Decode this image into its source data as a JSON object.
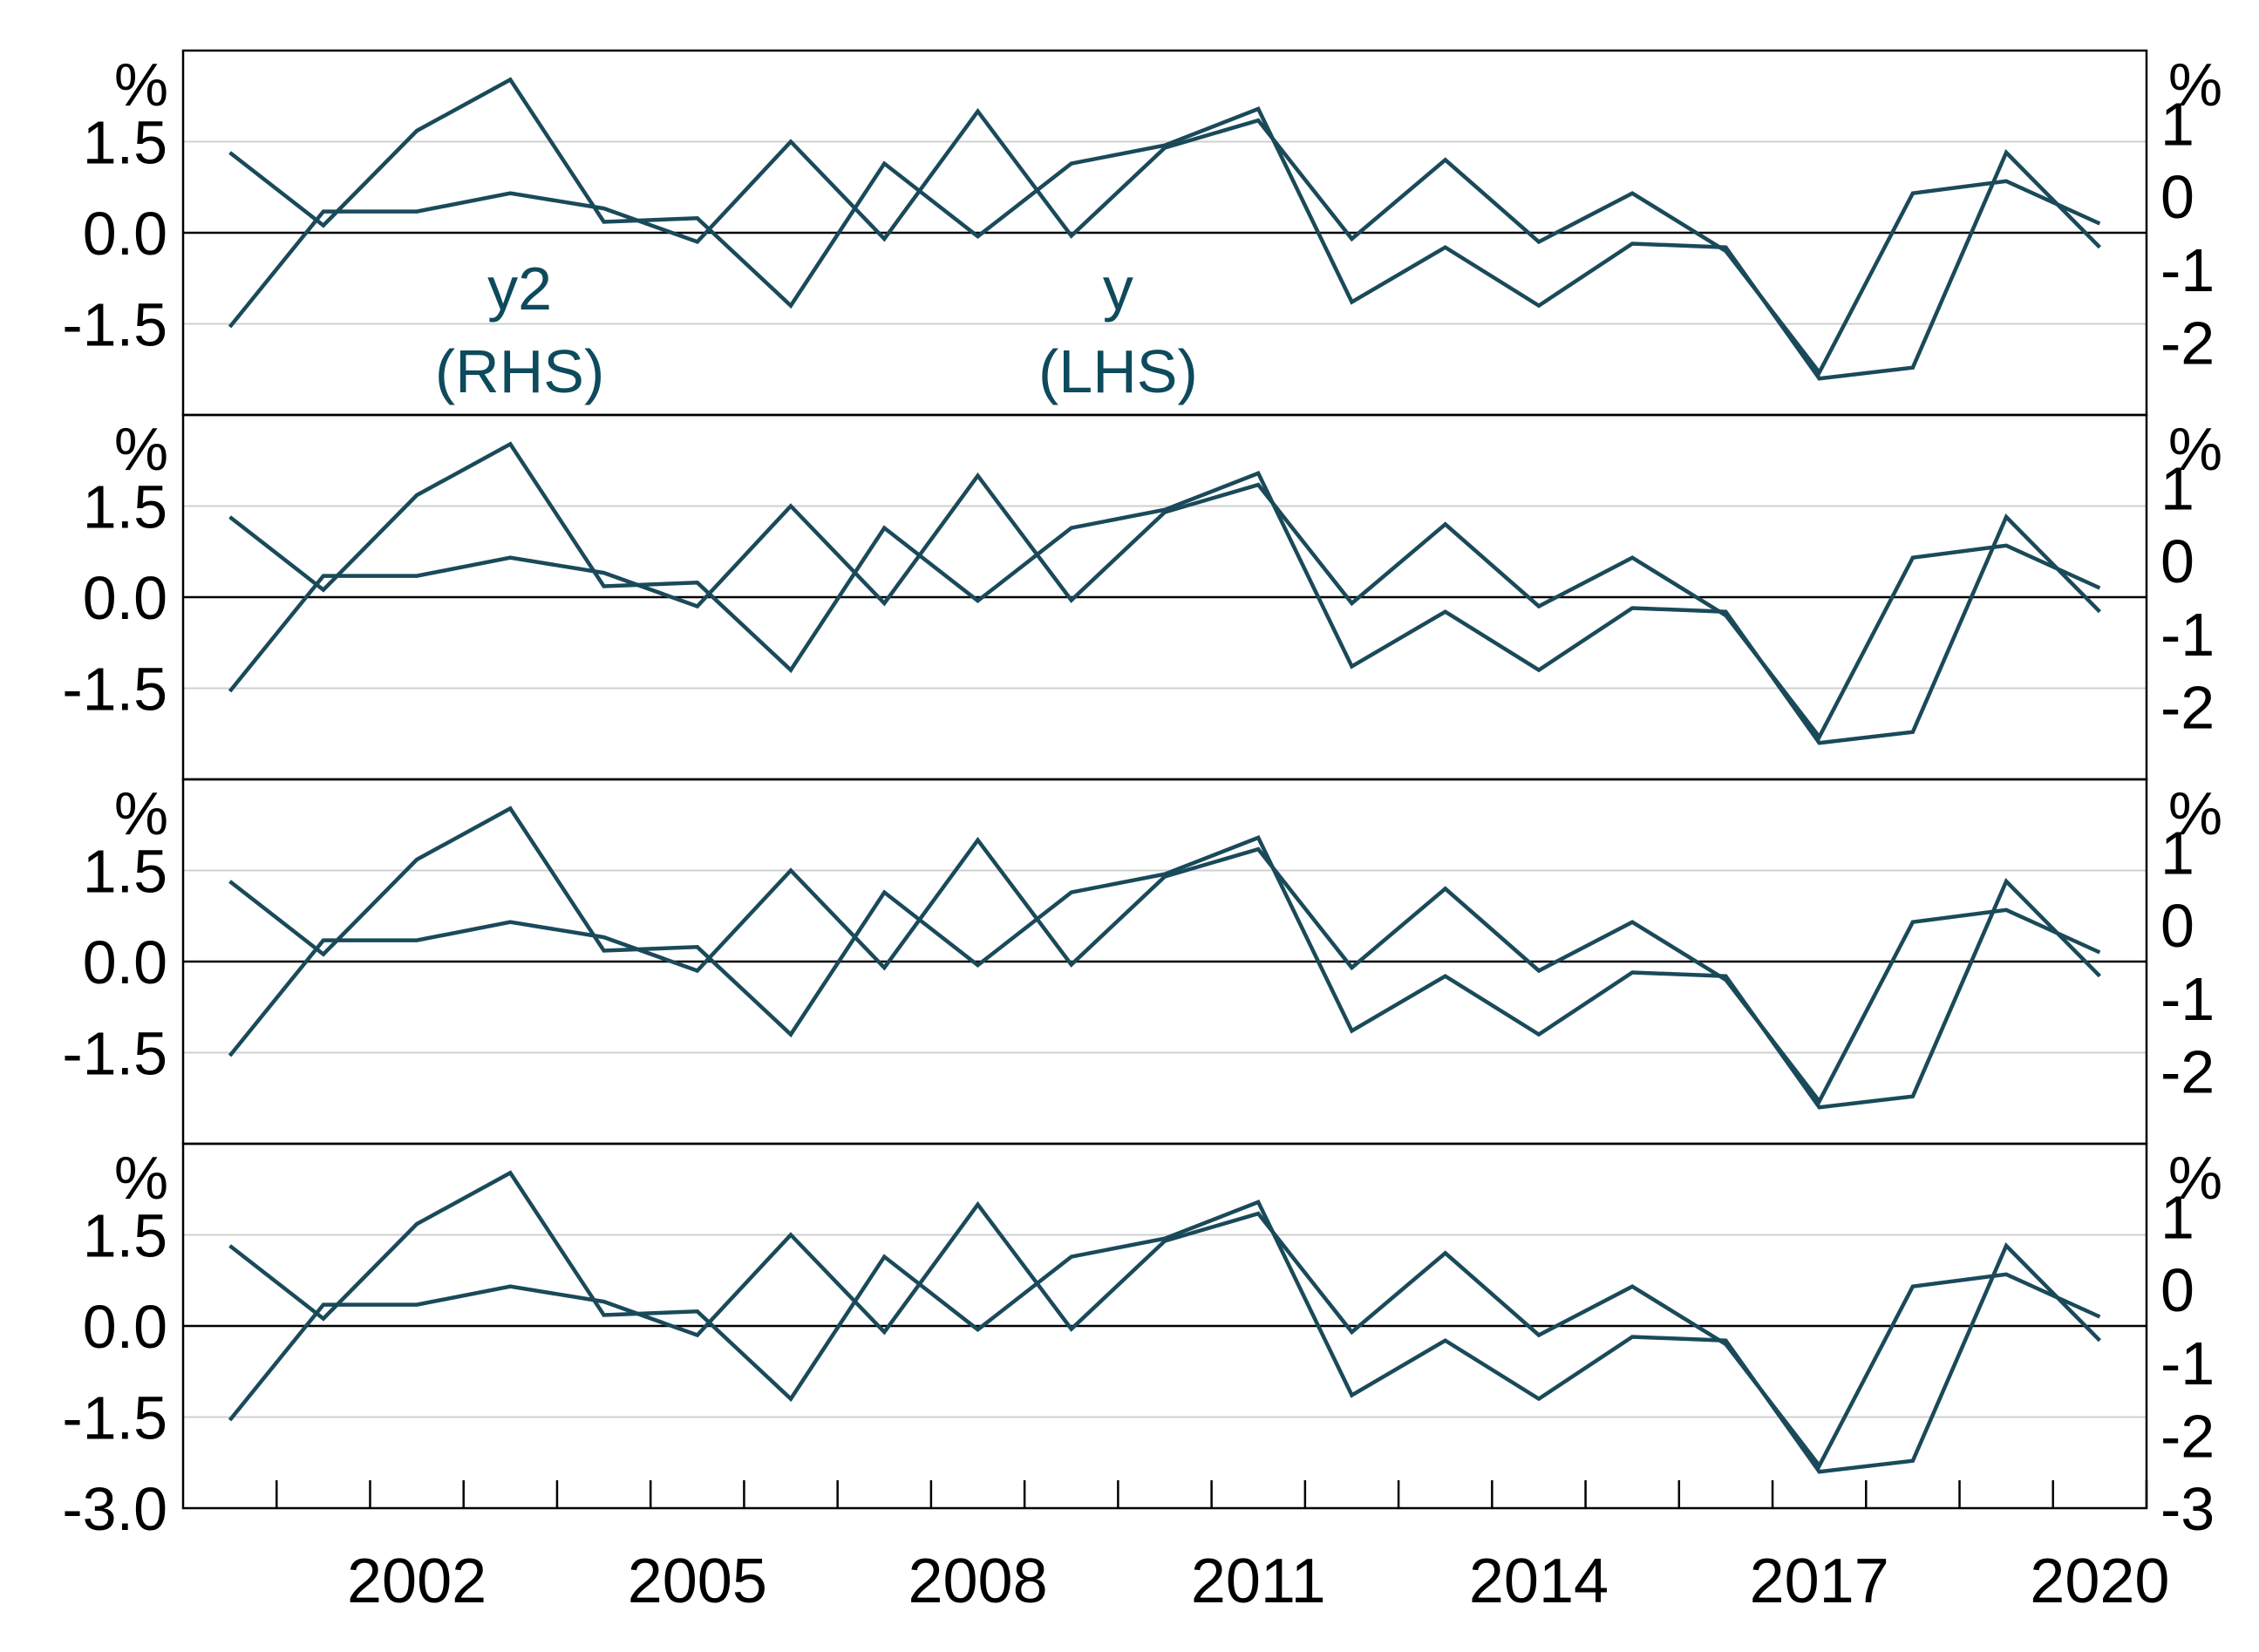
{
  "colors": {
    "series_line": "#1a4a5a",
    "zero_line": "#000000",
    "grid": "#d0d0d0",
    "frame": "#000000",
    "annotation": "#0d4a5c"
  },
  "chart_data": {
    "type": "line",
    "panel_count": 4,
    "x": [
      2000,
      2001,
      2002,
      2003,
      2004,
      2005,
      2006,
      2007,
      2008,
      2009,
      2010,
      2011,
      2012,
      2013,
      2014,
      2015,
      2016,
      2017,
      2018,
      2019,
      2020
    ],
    "xlim": [
      1999.5,
      2020.5
    ],
    "x_ticks": [
      2002,
      2005,
      2008,
      2011,
      2014,
      2017,
      2020
    ],
    "x_tick_labels": [
      "2002",
      "2005",
      "2008",
      "2011",
      "2014",
      "2017",
      "2020"
    ],
    "left_axis": {
      "unit": "%",
      "ylim": [
        -3.0,
        3.0
      ],
      "ticks": [
        1.5,
        0.0,
        -1.5
      ],
      "tick_labels": [
        "1.5",
        "0.0",
        "-1.5"
      ],
      "bottom_panel_ticks": [
        1.5,
        0.0,
        -1.5,
        -3.0
      ],
      "bottom_panel_tick_labels": [
        "1.5",
        "0.0",
        "-1.5",
        "-3.0"
      ]
    },
    "right_axis": {
      "unit": "%",
      "ylim": [
        -3.0,
        2.0
      ],
      "ticks": [
        1,
        0,
        -1,
        -2
      ],
      "tick_labels": [
        "1",
        "0",
        "-1",
        "-2"
      ],
      "bottom_panel_ticks": [
        1,
        0,
        -1,
        -2,
        -3
      ],
      "bottom_panel_tick_labels": [
        "1",
        "0",
        "-1",
        "-2",
        "-3"
      ]
    },
    "series": [
      {
        "name": "y",
        "axis": "left",
        "values": [
          -1.55,
          0.35,
          0.35,
          0.65,
          0.4,
          -0.15,
          1.5,
          -0.1,
          2.0,
          -0.05,
          1.4,
          1.85,
          -0.1,
          1.2,
          -0.15,
          0.65,
          -0.3,
          -2.3,
          0.65,
          0.85,
          0.15
        ]
      },
      {
        "name": "y2",
        "axis": "right",
        "values": [
          0.6,
          -0.4,
          0.9,
          1.6,
          -0.35,
          -0.3,
          -1.5,
          0.45,
          -0.55,
          0.45,
          0.7,
          1.2,
          -1.45,
          -0.7,
          -1.5,
          -0.65,
          -0.7,
          -2.5,
          -2.35,
          0.6,
          -0.7
        ]
      }
    ],
    "annotations": [
      {
        "line1": "y2",
        "line2": "(RHS)",
        "x": 2003.1
      },
      {
        "line1": "y",
        "line2": "(LHS)",
        "x": 2009.5
      }
    ]
  }
}
